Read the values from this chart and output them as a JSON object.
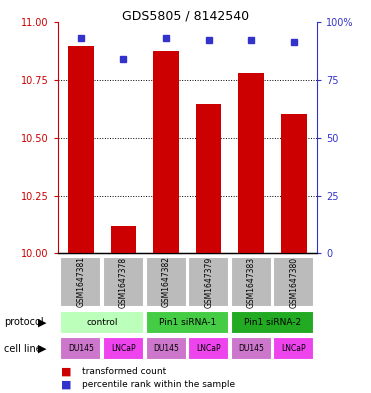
{
  "title": "GDS5805 / 8142540",
  "samples": [
    "GSM1647381",
    "GSM1647378",
    "GSM1647382",
    "GSM1647379",
    "GSM1647383",
    "GSM1647380"
  ],
  "bar_values": [
    10.895,
    10.12,
    10.875,
    10.645,
    10.78,
    10.6
  ],
  "percentile_values": [
    93,
    84,
    93,
    92,
    92,
    91
  ],
  "ylim_left": [
    10.0,
    11.0
  ],
  "ylim_right": [
    0,
    100
  ],
  "yticks_left": [
    10.0,
    10.25,
    10.5,
    10.75,
    11.0
  ],
  "yticks_right": [
    0,
    25,
    50,
    75,
    100
  ],
  "bar_color": "#cc0000",
  "dot_color": "#3333cc",
  "protocol_groups": [
    {
      "label": "control",
      "span": [
        0,
        2
      ],
      "color": "#bbffbb"
    },
    {
      "label": "Pin1 siRNA-1",
      "span": [
        2,
        4
      ],
      "color": "#44cc44"
    },
    {
      "label": "Pin1 siRNA-2",
      "span": [
        4,
        6
      ],
      "color": "#22aa22"
    }
  ],
  "cell_lines": [
    {
      "label": "DU145",
      "color": "#cc77cc"
    },
    {
      "label": "LNCaP",
      "color": "#ee44ee"
    },
    {
      "label": "DU145",
      "color": "#cc77cc"
    },
    {
      "label": "LNCaP",
      "color": "#ee44ee"
    },
    {
      "label": "DU145",
      "color": "#cc77cc"
    },
    {
      "label": "LNCaP",
      "color": "#ee44ee"
    }
  ],
  "sample_bg_color": "#bbbbbb",
  "legend_red_label": "transformed count",
  "legend_blue_label": "percentile rank within the sample"
}
